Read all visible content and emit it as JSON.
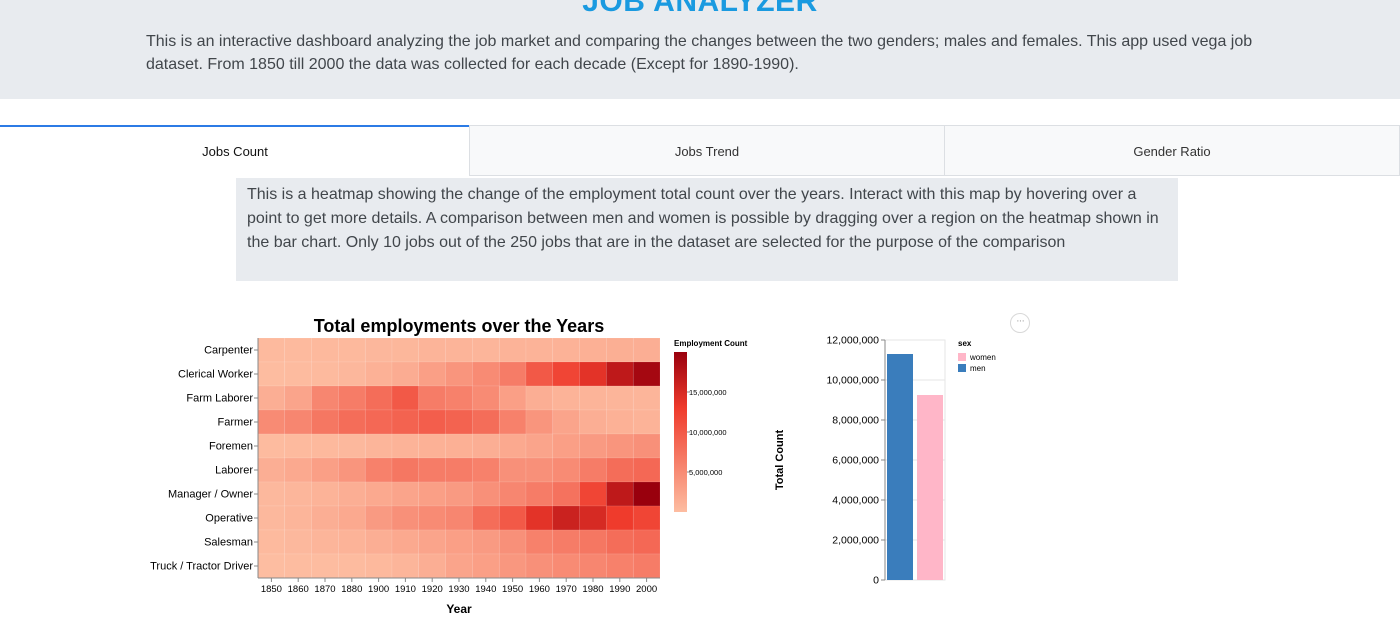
{
  "app": {
    "title": "JOB ANALYZER",
    "description": "This is an interactive dashboard analyzing the job market and comparing the changes between the two genders; males and females. This app used vega job dataset. From 1850 till 2000 the data was collected for each decade (Except for 1890-1990)."
  },
  "tabs": [
    {
      "label": "Jobs Count",
      "active": true
    },
    {
      "label": "Jobs Trend",
      "active": false
    },
    {
      "label": "Gender Ratio",
      "active": false
    }
  ],
  "info": {
    "text": "This is a heatmap showing the change of the employment total count over the years. Interact with this map by hovering over a point to get more details. A comparison between men and women is possible by dragging over a region on the heatmap shown in the bar chart. Only 10 jobs out of the 250 jobs that are in the dataset are selected for the purpose of the comparison"
  },
  "actions_menu": {
    "label": "···"
  },
  "chart_data": [
    {
      "type": "heatmap",
      "title": "Total employments over the Years",
      "xlabel": "Year",
      "ylabel": "",
      "x": [
        "1850",
        "1860",
        "1870",
        "1880",
        "1900",
        "1910",
        "1920",
        "1930",
        "1940",
        "1950",
        "1960",
        "1970",
        "1980",
        "1990",
        "2000"
      ],
      "y": [
        "Carpenter",
        "Clerical Worker",
        "Farm Laborer",
        "Farmer",
        "Foremen",
        "Laborer",
        "Manager / Owner",
        "Operative",
        "Salesman",
        "Truck / Tractor Driver"
      ],
      "values": [
        [
          300000,
          350000,
          400000,
          450000,
          600000,
          650000,
          900000,
          900000,
          800000,
          1000000,
          1000000,
          1100000,
          1300000,
          1400000,
          1500000
        ],
        [
          100000,
          200000,
          300000,
          600000,
          1200000,
          1700000,
          3000000,
          4000000,
          5000000,
          6500000,
          10000000,
          12000000,
          14000000,
          17000000,
          19000000
        ],
        [
          1500000,
          2500000,
          5500000,
          6500000,
          8000000,
          10000000,
          6500000,
          6000000,
          5000000,
          3000000,
          1500000,
          1000000,
          900000,
          800000,
          800000
        ],
        [
          5000000,
          5500000,
          7000000,
          8000000,
          8500000,
          9000000,
          9500000,
          9000000,
          8000000,
          6000000,
          4000000,
          2500000,
          1500000,
          1200000,
          1000000
        ],
        [
          200000,
          300000,
          400000,
          500000,
          800000,
          1000000,
          1200000,
          1300000,
          1500000,
          2000000,
          2500000,
          3000000,
          3500000,
          4000000,
          4500000
        ],
        [
          1500000,
          2000000,
          3000000,
          4000000,
          6000000,
          7000000,
          6500000,
          6500000,
          6000000,
          4500000,
          4500000,
          5000000,
          6500000,
          8000000,
          8500000
        ],
        [
          500000,
          700000,
          1000000,
          1500000,
          2000000,
          2500000,
          3000000,
          3500000,
          4500000,
          5500000,
          6500000,
          7500000,
          12000000,
          17000000,
          20000000
        ],
        [
          500000,
          800000,
          1500000,
          2000000,
          3500000,
          4500000,
          5000000,
          5500000,
          8000000,
          10000000,
          14000000,
          16000000,
          15000000,
          13000000,
          12000000
        ],
        [
          300000,
          500000,
          800000,
          1000000,
          1500000,
          2000000,
          2500000,
          3000000,
          3500000,
          4500000,
          6000000,
          6500000,
          7000000,
          8000000,
          8500000
        ],
        [
          50000,
          100000,
          150000,
          200000,
          400000,
          800000,
          1500000,
          2500000,
          3000000,
          3800000,
          4500000,
          5000000,
          5500000,
          6000000,
          6500000
        ]
      ],
      "legend": {
        "title": "Employment Count",
        "ticks": [
          "15,000,000",
          "10,000,000",
          "5,000,000"
        ],
        "placement": "right"
      },
      "colors": {
        "low": "#fdbda1",
        "mid": "#ef3b2c",
        "high": "#99000d"
      }
    },
    {
      "type": "bar",
      "ylabel": "Total Count",
      "xlabel": "",
      "ylim": [
        0,
        12000000
      ],
      "yticks": [
        "12,000,000",
        "10,000,000",
        "8,000,000",
        "6,000,000",
        "4,000,000",
        "2,000,000",
        "0"
      ],
      "categories": [
        "men",
        "women"
      ],
      "values": [
        11300000,
        9250000
      ],
      "colors": {
        "men": "#3a7dbc",
        "women": "#ffb6c8"
      },
      "legend": {
        "title": "sex",
        "entries": [
          "women",
          "men"
        ],
        "placement": "top-right"
      }
    }
  ]
}
